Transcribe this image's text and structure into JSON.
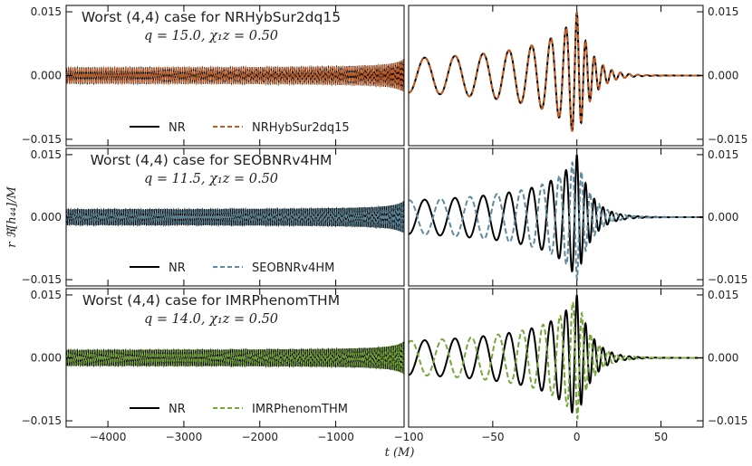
{
  "chart_data": {
    "type": "line",
    "xlabel": "t (M)",
    "ylabel": "r ℜ[h₄₄]/M",
    "ylim": [
      -0.0165,
      0.0165
    ],
    "yticks": [
      -0.015,
      0.0,
      0.015
    ],
    "ytick_labels": [
      "−0.015",
      "0.000",
      "0.015"
    ],
    "left_xlim": [
      -4550,
      -100
    ],
    "left_xticks": [
      -4000,
      -3000,
      -2000,
      -1000
    ],
    "left_xtick_labels": [
      "−4000",
      "−3000",
      "−2000",
      "−1000"
    ],
    "right_xlim": [
      -100,
      75
    ],
    "right_xticks": [
      -100,
      -50,
      0,
      50
    ],
    "right_xtick_labels": [
      "−100",
      "−50",
      "0",
      "50"
    ],
    "panels": [
      {
        "title": "Worst (4,4) case for NRHybSur2dq15",
        "subtitle": "q = 15.0, χ₁z = 0.50",
        "series": [
          {
            "name": "NR",
            "color": "#000000",
            "style": "solid"
          },
          {
            "name": "NRHybSur2dq15",
            "color": "#c45a1f",
            "style": "dashed",
            "phase_shift": 0.0
          }
        ]
      },
      {
        "title": "Worst (4,4) case for SEOBNRv4HM",
        "subtitle": "q = 11.5, χ₁z = 0.50",
        "series": [
          {
            "name": "NR",
            "color": "#000000",
            "style": "solid"
          },
          {
            "name": "SEOBNRv4HM",
            "color": "#5f8a9e",
            "style": "dashed",
            "phase_shift": 3.0
          }
        ]
      },
      {
        "title": "Worst (4,4) case for IMRPhenomTHM",
        "subtitle": "q = 14.0, χ₁z = 0.50",
        "series": [
          {
            "name": "NR",
            "color": "#000000",
            "style": "solid"
          },
          {
            "name": "IMRPhenomTHM",
            "color": "#76a83a",
            "style": "dashed",
            "phase_shift": 2.7
          }
        ]
      }
    ]
  }
}
